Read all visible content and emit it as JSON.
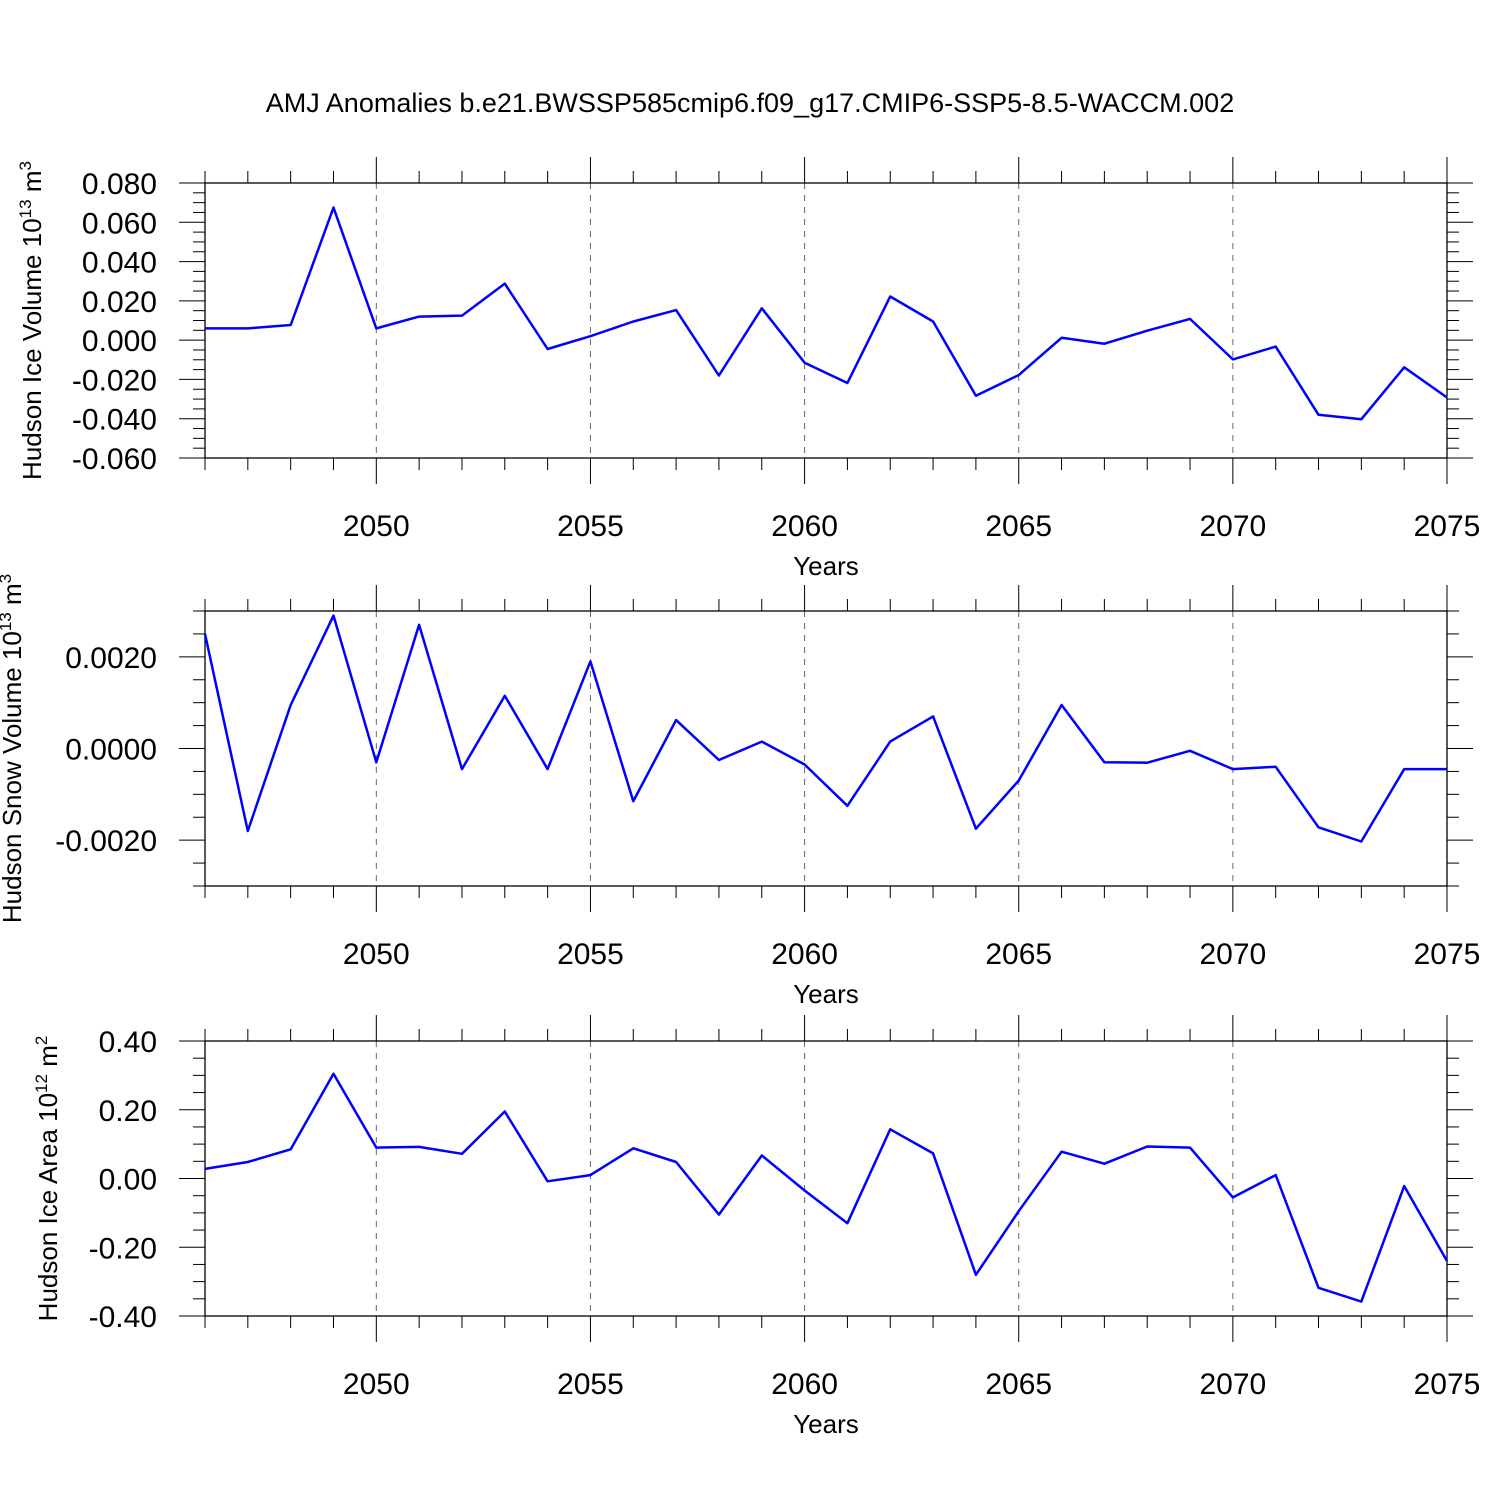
{
  "figure": {
    "title": "AMJ Anomalies b.e21.BWSSP585cmip6.f09_g17.CMIP6-SSP5-8.5-WACCM.002"
  },
  "chart_data": [
    {
      "type": "line",
      "ylabel": {
        "main": "Hudson Ice Volume 10",
        "exp": "13",
        "unit": " m",
        "unit_exp": "3"
      },
      "xlabel": "Years",
      "xlim": [
        2046,
        2075
      ],
      "ylim": [
        -0.06,
        0.08
      ],
      "yticks": [
        -0.06,
        -0.04,
        -0.02,
        0.0,
        0.02,
        0.04,
        0.06,
        0.08
      ],
      "ytick_labels": [
        "-0.060",
        "-0.040",
        "-0.020",
        "0.000",
        "0.020",
        "0.040",
        "0.060",
        "0.080"
      ],
      "xticks": [
        2050,
        2055,
        2060,
        2065,
        2070,
        2075
      ],
      "xtick_labels": [
        "2050",
        "2055",
        "2060",
        "2065",
        "2070",
        "2075"
      ],
      "grid_x": true,
      "x": [
        2046,
        2047,
        2048,
        2049,
        2050,
        2051,
        2052,
        2053,
        2054,
        2055,
        2056,
        2057,
        2058,
        2059,
        2060,
        2061,
        2062,
        2063,
        2064,
        2065,
        2066,
        2067,
        2068,
        2069,
        2070,
        2071,
        2072,
        2073,
        2074,
        2075
      ],
      "series": [
        {
          "name": "Hudson Ice Volume",
          "color": "#0000ff",
          "values": [
            0.006,
            0.006,
            0.0077,
            0.0675,
            0.006,
            0.012,
            0.0125,
            0.0288,
            -0.0045,
            0.002,
            0.0095,
            0.0153,
            -0.018,
            0.0162,
            -0.0115,
            -0.0218,
            0.0222,
            0.0095,
            -0.0283,
            -0.0178,
            0.0012,
            -0.0018,
            0.0048,
            0.0108,
            -0.0098,
            -0.0033,
            -0.038,
            -0.0403,
            -0.0138,
            -0.0292
          ]
        }
      ]
    },
    {
      "type": "line",
      "ylabel": {
        "main": "Hudson Snow Volume 10",
        "exp": "13",
        "unit": " m",
        "unit_exp": "3"
      },
      "xlabel": "Years",
      "xlim": [
        2046,
        2075
      ],
      "ylim": [
        -0.003,
        0.003
      ],
      "yticks": [
        -0.002,
        0.0,
        0.002
      ],
      "ytick_labels": [
        "-0.0020",
        "0.0000",
        "0.0020"
      ],
      "xticks": [
        2050,
        2055,
        2060,
        2065,
        2070,
        2075
      ],
      "xtick_labels": [
        "2050",
        "2055",
        "2060",
        "2065",
        "2070",
        "2075"
      ],
      "grid_x": true,
      "x": [
        2046,
        2047,
        2048,
        2049,
        2050,
        2051,
        2052,
        2053,
        2054,
        2055,
        2056,
        2057,
        2058,
        2059,
        2060,
        2061,
        2062,
        2063,
        2064,
        2065,
        2066,
        2067,
        2068,
        2069,
        2070,
        2071,
        2072,
        2073,
        2074,
        2075
      ],
      "series": [
        {
          "name": "Hudson Snow Volume",
          "color": "#0000ff",
          "values": [
            0.0025,
            -0.0018,
            0.00095,
            0.0029,
            -0.0003,
            0.0027,
            -0.00045,
            0.00115,
            -0.00045,
            0.0019,
            -0.00115,
            0.00062,
            -0.00025,
            0.00015,
            -0.00035,
            -0.00125,
            0.00015,
            0.0007,
            -0.00175,
            -0.0007,
            0.00095,
            -0.0003,
            -0.00031,
            -5e-05,
            -0.00045,
            -0.0004,
            -0.00172,
            -0.00203,
            -0.00045,
            -0.00045
          ]
        }
      ]
    },
    {
      "type": "line",
      "ylabel": {
        "main": "Hudson Ice Area 10",
        "exp": "12",
        "unit": " m",
        "unit_exp": "2"
      },
      "xlabel": "Years",
      "xlim": [
        2046,
        2075
      ],
      "ylim": [
        -0.4,
        0.4
      ],
      "yticks": [
        -0.4,
        -0.2,
        0.0,
        0.2,
        0.4
      ],
      "ytick_labels": [
        "-0.40",
        "-0.20",
        "0.00",
        "0.20",
        "0.40"
      ],
      "xticks": [
        2050,
        2055,
        2060,
        2065,
        2070,
        2075
      ],
      "xtick_labels": [
        "2050",
        "2055",
        "2060",
        "2065",
        "2070",
        "2075"
      ],
      "grid_x": true,
      "x": [
        2046,
        2047,
        2048,
        2049,
        2050,
        2051,
        2052,
        2053,
        2054,
        2055,
        2056,
        2057,
        2058,
        2059,
        2060,
        2061,
        2062,
        2063,
        2064,
        2065,
        2066,
        2067,
        2068,
        2069,
        2070,
        2071,
        2072,
        2073,
        2074,
        2075
      ],
      "series": [
        {
          "name": "Hudson Ice Area",
          "color": "#0000ff",
          "values": [
            0.028,
            0.048,
            0.085,
            0.305,
            0.09,
            0.092,
            0.072,
            0.195,
            -0.008,
            0.01,
            0.088,
            0.048,
            -0.105,
            0.067,
            -0.035,
            -0.13,
            0.143,
            0.073,
            -0.28,
            -0.095,
            0.078,
            0.043,
            0.093,
            0.09,
            -0.055,
            0.01,
            -0.318,
            -0.358,
            -0.022,
            -0.24
          ]
        }
      ]
    }
  ]
}
